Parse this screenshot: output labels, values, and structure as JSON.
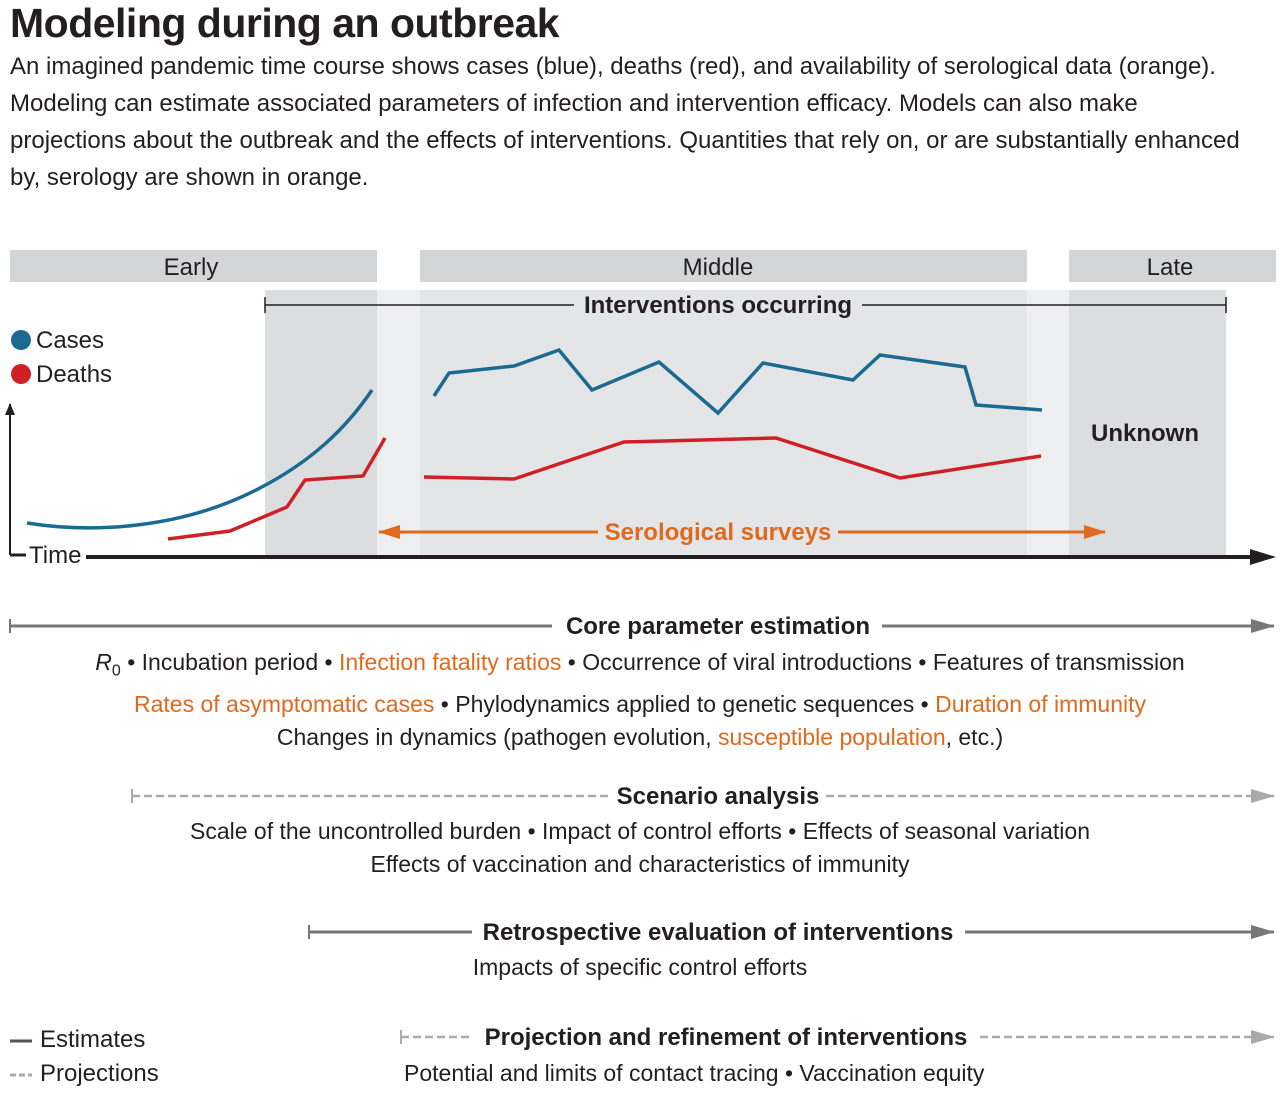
{
  "title": "Modeling during an outbreak",
  "description": "An imagined pandemic time course shows cases (blue), deaths (red), and availability of serological data (orange). Modeling can estimate associated parameters of infection and intervention efficacy. Models can also make projections about the outbreak and the effects of interventions. Quantities that rely on, or are substantially enhanced by, serology are shown in orange.",
  "colors": {
    "cases": "#1b6a92",
    "deaths": "#cf2027",
    "serology": "#e0691e",
    "band": "#d4d5d6",
    "shade": "#e6e7e8"
  },
  "phases": {
    "early": "Early",
    "middle": "Middle",
    "late": "Late"
  },
  "interventions_label": "Interventions occurring",
  "serology_label": "Serological surveys",
  "unknown_label": "Unknown",
  "axis": {
    "x": "Time"
  },
  "chart_legend": {
    "cases": "Cases",
    "deaths": "Deaths"
  },
  "sections": {
    "core": {
      "title": "Core parameter estimation",
      "r0_symbol": "R",
      "r0_sub": "0",
      "line1": [
        " • Incubation period • ",
        "Infection fatality ratios",
        " • Occurrence  of viral introductions • Features of transmission"
      ],
      "line2": [
        "Rates of asymptomatic cases",
        " • Phylodynamics applied to genetic sequences • ",
        "Duration of immunity"
      ],
      "line3": [
        "Changes in dynamics (pathogen evolution, ",
        "susceptible population",
        ", etc.)"
      ]
    },
    "scenario": {
      "title": "Scenario analysis",
      "line1": "Scale of the uncontrolled burden • Impact of control efforts • Effects of seasonal variation",
      "line2": "Effects of vaccination and characteristics of immunity"
    },
    "retro": {
      "title": "Retrospective evaluation of interventions",
      "line1": "Impacts of specific control efforts"
    },
    "projection": {
      "title": "Projection and refinement of interventions",
      "line1": "Potential and limits of contact tracing • Vaccination equity"
    }
  },
  "legend": {
    "estimates": "Estimates",
    "projections": "Projections"
  }
}
